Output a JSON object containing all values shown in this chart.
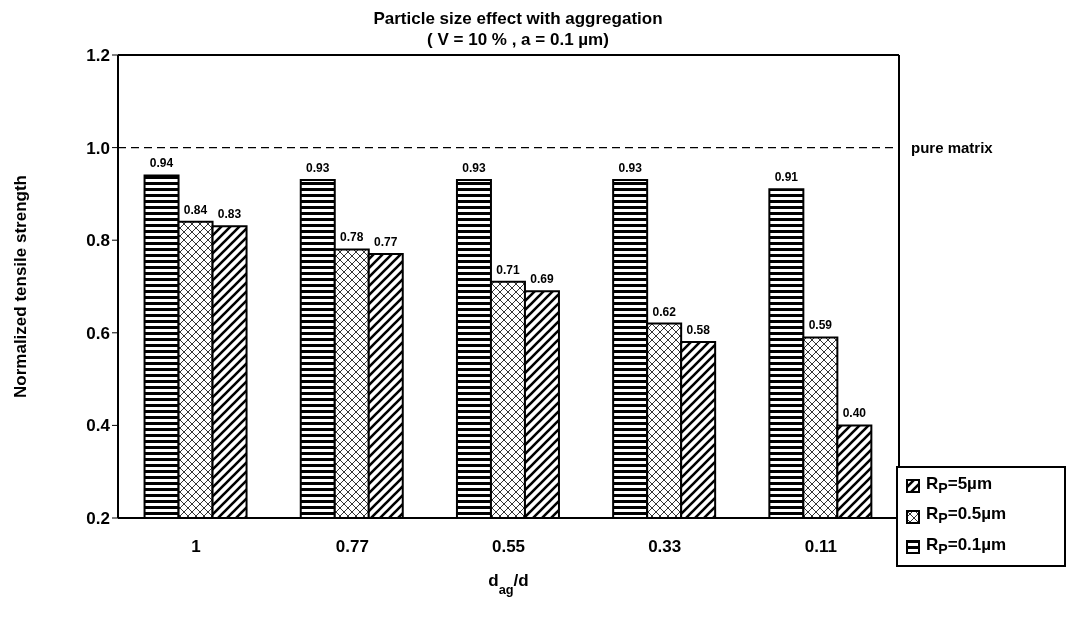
{
  "chart_data": {
    "type": "bar",
    "title": "Particle size effect with aggregation",
    "subtitle": "( V = 10 % , a = 0.1 µm)",
    "xlabel": "d$_{ag}$/d",
    "ylabel": "Normalized tensile strength",
    "categories": [
      "1",
      "0.77",
      "0.55",
      "0.33",
      "0.11"
    ],
    "series": [
      {
        "name": "R$_{P}$=0.1µm",
        "color": "#000000",
        "values": [
          0.94,
          0.93,
          0.93,
          0.93,
          0.91
        ],
        "value_labels": [
          "0.94",
          "0.93",
          "0.93",
          "0.93",
          "0.91"
        ]
      },
      {
        "name": "R$_{P}$=0.5µm",
        "color": "#000000",
        "values": [
          0.84,
          0.78,
          0.71,
          0.62,
          0.59
        ],
        "value_labels": [
          "0.84",
          "0.78",
          "0.71",
          "0.62",
          "0.59"
        ]
      },
      {
        "name": "R$_{P}$=5µm",
        "color": "#000000",
        "values": [
          0.83,
          0.77,
          0.69,
          0.58,
          0.4
        ],
        "value_labels": [
          "0.83",
          "0.77",
          "0.69",
          "0.58",
          "0.40"
        ]
      }
    ],
    "ylim": [
      0.2,
      1.2
    ],
    "yticks": [
      0.2,
      0.4,
      0.6,
      0.8,
      {
        "value": 1,
        "label": "1.0"
      },
      1.2
    ],
    "ref_lines": [
      {
        "axis": "y",
        "value": 1,
        "label": "pure matrix",
        "line_style": "dashed",
        "color": "#000000"
      }
    ],
    "grid": false,
    "legend": "right"
  }
}
